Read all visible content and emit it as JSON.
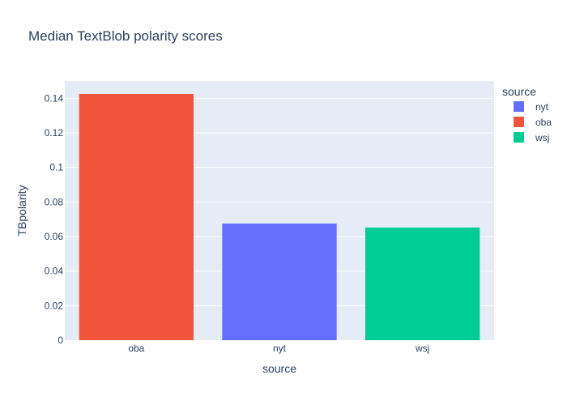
{
  "chart_data": {
    "type": "bar",
    "title": "Median TextBlob polarity scores",
    "xlabel": "source",
    "ylabel": "TBpolarity",
    "categories": [
      "oba",
      "nyt",
      "wsj"
    ],
    "series": [
      {
        "name": "nyt",
        "color": "#636efa",
        "x": "nyt",
        "value": 0.0675
      },
      {
        "name": "oba",
        "color": "#ef553b",
        "x": "oba",
        "value": 0.1425
      },
      {
        "name": "wsj",
        "color": "#00cc96",
        "x": "wsj",
        "value": 0.0652
      }
    ],
    "ylim": [
      0,
      0.15
    ],
    "yticks": [
      0,
      0.02,
      0.04,
      0.06,
      0.08,
      0.1,
      0.12,
      0.14
    ],
    "ytick_labels": [
      "0",
      "0.02",
      "0.04",
      "0.06",
      "0.08",
      "0.1",
      "0.12",
      "0.14"
    ],
    "grid": true,
    "legend_title": "source",
    "legend_position": "top-right",
    "plot_bgcolor": "#e5ecf6"
  }
}
